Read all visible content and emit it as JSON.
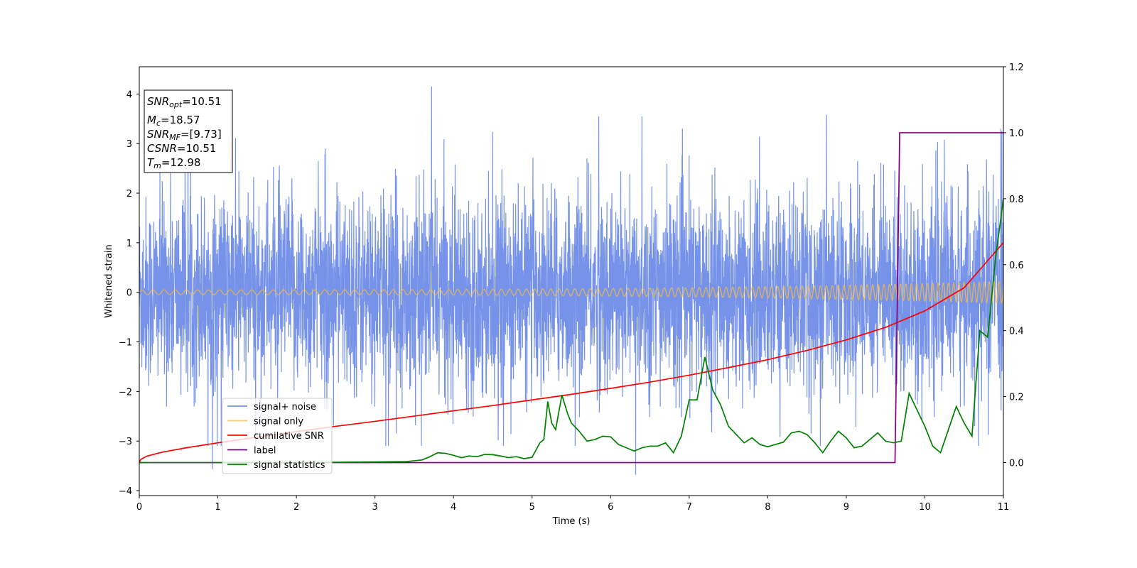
{
  "chart_data": {
    "type": "line",
    "xlabel": "Time (s)",
    "ylabel": "Whitened strain",
    "xlim": [
      0,
      11
    ],
    "ylim": [
      -4.1,
      4.55
    ],
    "y2lim": [
      -0.1,
      1.2
    ],
    "x_ticks": [
      0,
      1,
      2,
      3,
      4,
      5,
      6,
      7,
      8,
      9,
      10,
      11
    ],
    "y_ticks": [
      -4,
      -3,
      -2,
      -1,
      0,
      1,
      2,
      3,
      4
    ],
    "y2_ticks": [
      0.0,
      0.2,
      0.4,
      0.6,
      0.8,
      1.0,
      1.2
    ],
    "grid": false,
    "legend_position": "lower-left",
    "info_box": {
      "position": "top-left",
      "lines": [
        {
          "base": "SNR",
          "sub": "opt",
          "value": "=10.51"
        },
        {
          "base": "M",
          "sub": "c",
          "value": "=18.57"
        },
        {
          "base": "SNR",
          "sub": "MF",
          "value": "=[9.73]"
        },
        {
          "base": "CSNR",
          "sub": "",
          "value": "=10.51"
        },
        {
          "base": "T",
          "sub": "m",
          "value": "=12.98"
        }
      ]
    },
    "series": [
      {
        "name": "signal+ noise",
        "axis": "left",
        "color": "#4169e1",
        "style": "dense noisy trace around 0; spread about ±1.5, peaks to ±3.5",
        "notable_points": [
          [
            0.93,
            -3.57
          ],
          [
            3.72,
            4.15
          ],
          [
            6.32,
            -3.68
          ],
          [
            8.75,
            3.58
          ],
          [
            6.4,
            3.55
          ],
          [
            5.85,
            3.55
          ],
          [
            10.98,
            3.25
          ]
        ]
      },
      {
        "name": "signal only",
        "axis": "left",
        "color": "#f4b942",
        "style": "chirp oscillation around 0",
        "amplitude_start": 0.05,
        "amplitude_end": 0.22,
        "frequency_start": 7,
        "frequency_end": 16
      },
      {
        "name": "cumilative SNR",
        "axis": "right",
        "color": "#ff0000",
        "x": [
          0,
          0.02,
          0.1,
          0.3,
          0.6,
          1,
          1.5,
          2,
          2.5,
          3,
          3.5,
          4,
          4.5,
          5,
          5.5,
          6,
          6.5,
          7,
          7.5,
          8,
          8.5,
          9,
          9.5,
          10,
          10.5,
          11
        ],
        "y": [
          0.0,
          0.01,
          0.02,
          0.032,
          0.045,
          0.06,
          0.077,
          0.094,
          0.11,
          0.125,
          0.141,
          0.157,
          0.173,
          0.19,
          0.207,
          0.225,
          0.244,
          0.265,
          0.288,
          0.312,
          0.34,
          0.372,
          0.41,
          0.46,
          0.53,
          0.667
        ]
      },
      {
        "name": "label",
        "axis": "right",
        "color": "#800080",
        "x": [
          0,
          9.62,
          9.68,
          11
        ],
        "y": [
          0,
          0,
          1,
          1
        ]
      },
      {
        "name": "signal statistics",
        "axis": "right",
        "color": "#008000",
        "x": [
          0,
          1,
          2,
          3,
          3.4,
          3.6,
          3.7,
          3.8,
          3.9,
          4.0,
          4.1,
          4.2,
          4.3,
          4.4,
          4.5,
          4.6,
          4.7,
          4.8,
          4.9,
          5.0,
          5.1,
          5.15,
          5.2,
          5.25,
          5.3,
          5.38,
          5.45,
          5.5,
          5.6,
          5.7,
          5.8,
          5.9,
          6.0,
          6.1,
          6.2,
          6.3,
          6.4,
          6.5,
          6.6,
          6.7,
          6.8,
          6.9,
          7.0,
          7.1,
          7.2,
          7.3,
          7.4,
          7.5,
          7.6,
          7.7,
          7.8,
          7.9,
          8.0,
          8.1,
          8.2,
          8.3,
          8.4,
          8.5,
          8.6,
          8.7,
          8.8,
          8.9,
          9.0,
          9.1,
          9.2,
          9.3,
          9.4,
          9.5,
          9.6,
          9.7,
          9.8,
          9.9,
          10.0,
          10.1,
          10.2,
          10.3,
          10.4,
          10.5,
          10.6,
          10.7,
          10.8,
          10.9,
          11.0
        ],
        "y": [
          0.0,
          0.0,
          0.0,
          0.002,
          0.003,
          0.008,
          0.018,
          0.03,
          0.028,
          0.022,
          0.015,
          0.02,
          0.018,
          0.025,
          0.024,
          0.02,
          0.015,
          0.018,
          0.012,
          0.016,
          0.06,
          0.07,
          0.185,
          0.12,
          0.1,
          0.205,
          0.15,
          0.12,
          0.095,
          0.065,
          0.07,
          0.08,
          0.078,
          0.055,
          0.045,
          0.035,
          0.045,
          0.05,
          0.05,
          0.06,
          0.03,
          0.08,
          0.19,
          0.19,
          0.32,
          0.22,
          0.175,
          0.11,
          0.085,
          0.06,
          0.075,
          0.055,
          0.048,
          0.055,
          0.062,
          0.09,
          0.095,
          0.085,
          0.06,
          0.03,
          0.065,
          0.095,
          0.075,
          0.045,
          0.05,
          0.07,
          0.09,
          0.065,
          0.06,
          0.065,
          0.21,
          0.16,
          0.11,
          0.05,
          0.03,
          0.1,
          0.17,
          0.12,
          0.08,
          0.4,
          0.38,
          0.62,
          0.8
        ]
      }
    ]
  }
}
